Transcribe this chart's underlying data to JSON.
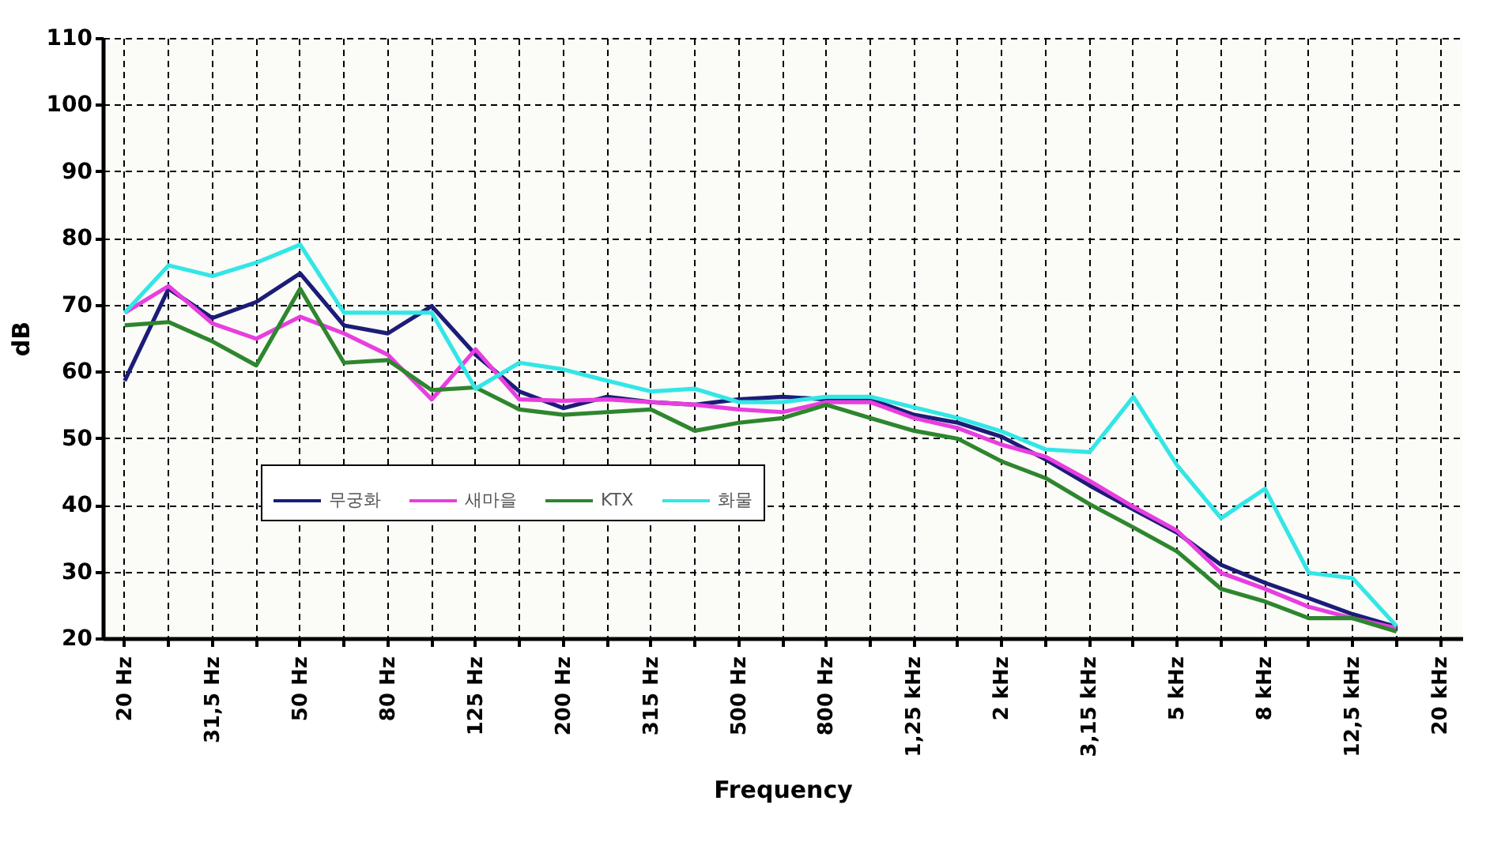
{
  "chart_data": {
    "type": "line",
    "xlabel": "Frequency",
    "ylabel": "dB",
    "categories": [
      "20 Hz",
      null,
      "31,5 Hz",
      null,
      "50 Hz",
      null,
      "80 Hz",
      null,
      "125 Hz",
      null,
      "200 Hz",
      null,
      "315 Hz",
      null,
      "500 Hz",
      null,
      "800 Hz",
      null,
      "1,25 kHz",
      null,
      "2 kHz",
      null,
      "3,15 kHz",
      null,
      "5 kHz",
      null,
      "8 kHz",
      null,
      "12,5 kHz",
      null,
      "20 kHz"
    ],
    "series": [
      {
        "name": "무궁화",
        "color": "#1c1c78",
        "values": [
          58.6,
          72.4,
          68,
          70.4,
          74.7,
          66.9,
          65.7,
          69.8,
          62.5,
          57,
          54.5,
          56.2,
          55.4,
          55,
          55.8,
          56.2,
          55.8,
          55.8,
          53.5,
          52.3,
          50.2,
          46.8,
          42.9,
          39.3,
          35.8,
          31,
          28.3,
          26,
          23.6,
          21.7,
          null
        ]
      },
      {
        "name": "새마을",
        "color": "#e83ee0",
        "values": [
          68.8,
          72.8,
          67.2,
          64.9,
          68.2,
          65.7,
          62.5,
          55.8,
          63.3,
          55.8,
          55.6,
          55.8,
          55.4,
          55,
          54.3,
          53.9,
          55.4,
          55.4,
          53,
          51.5,
          49,
          47.2,
          43.6,
          39.7,
          36.1,
          29.8,
          27.4,
          24.7,
          23,
          21.5,
          null
        ]
      },
      {
        "name": "KTX",
        "color": "#2e862e",
        "values": [
          66.9,
          67.4,
          64.5,
          60.9,
          72.4,
          61.3,
          61.7,
          57.2,
          57.6,
          54.3,
          53.5,
          53.9,
          54.3,
          51.1,
          52.3,
          53,
          55,
          53,
          51.1,
          49.9,
          46.5,
          44,
          40.1,
          36.6,
          33,
          27.4,
          25.5,
          23,
          23,
          21,
          null
        ]
      },
      {
        "name": "화물",
        "color": "#33e6e6",
        "values": [
          68.8,
          75.9,
          74.3,
          76.3,
          79,
          68.8,
          68.8,
          68.8,
          57.4,
          61.3,
          60.3,
          58.6,
          57,
          57.4,
          55.4,
          55.4,
          56.2,
          56.2,
          54.6,
          53,
          51,
          48.3,
          47.9,
          56.2,
          45.9,
          38,
          42.4,
          29.8,
          29,
          21.8,
          null
        ]
      }
    ],
    "ylim": [
      20,
      110
    ],
    "yticks": [
      20,
      30,
      40,
      50,
      60,
      70,
      80,
      90,
      100,
      110
    ],
    "grid": true,
    "legend": "left"
  }
}
